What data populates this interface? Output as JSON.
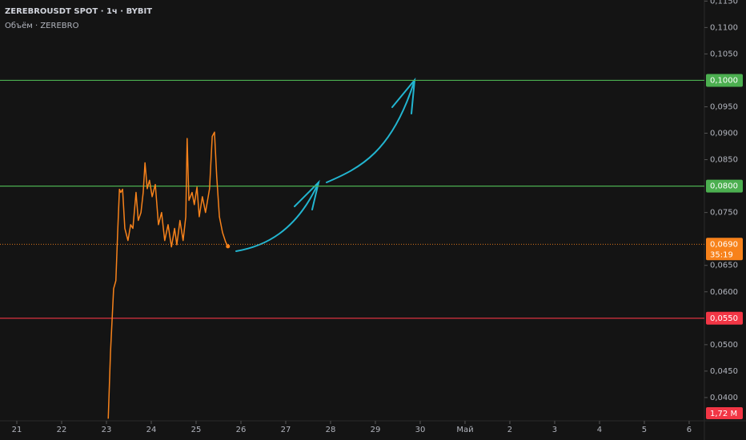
{
  "chart_data": {
    "type": "line",
    "title": "ZEREBROUSDT SPOT · 1ч · BYBIT",
    "subtitle": "Объём · ZEREBRO",
    "background": "#141414",
    "grid": false,
    "x": [
      23.04,
      23.09,
      23.16,
      23.21,
      23.25,
      23.29,
      23.32,
      23.36,
      23.41,
      23.48,
      23.54,
      23.59,
      23.66,
      23.71,
      23.77,
      23.82,
      23.86,
      23.91,
      23.96,
      24.02,
      24.09,
      24.16,
      24.23,
      24.3,
      24.375,
      24.45,
      24.52,
      24.57,
      24.64,
      24.71,
      24.77,
      24.8,
      24.84,
      24.91,
      24.96,
      25.02,
      25.07,
      25.14,
      25.21,
      25.3,
      25.36,
      25.41,
      25.46,
      25.52,
      25.59,
      25.66,
      25.71
    ],
    "series": [
      {
        "color": "#f7821b",
        "values": [
          0.036,
          0.0485,
          0.0606,
          0.0621,
          0.0712,
          0.0794,
          0.0788,
          0.0794,
          0.072,
          0.0697,
          0.0727,
          0.072,
          0.0788,
          0.0735,
          0.075,
          0.0788,
          0.0844,
          0.0795,
          0.0811,
          0.078,
          0.0803,
          0.0727,
          0.075,
          0.0697,
          0.0727,
          0.0685,
          0.072,
          0.0689,
          0.0735,
          0.0697,
          0.0742,
          0.089,
          0.0773,
          0.0788,
          0.0765,
          0.0798,
          0.0742,
          0.078,
          0.075,
          0.0795,
          0.0894,
          0.0902,
          0.0818,
          0.0742,
          0.0712,
          0.0694,
          0.0686
        ]
      }
    ],
    "xlim": [
      20.625,
      36.34
    ],
    "xticks": [
      21,
      22,
      23,
      24,
      25,
      26,
      27,
      28,
      29,
      30,
      {
        "value": 31,
        "label": "Май"
      },
      {
        "value": 32,
        "label": "2"
      },
      {
        "value": 33,
        "label": "3"
      },
      {
        "value": 34,
        "label": "4"
      },
      {
        "value": 35,
        "label": "5"
      },
      {
        "value": 36,
        "label": "6"
      }
    ],
    "ylim": [
      0.0356,
      0.1152
    ],
    "yticks": [
      {
        "value": 0.04,
        "label": "0,0400"
      },
      {
        "value": 0.045,
        "label": "0,0450"
      },
      {
        "value": 0.05,
        "label": "0,0500"
      },
      {
        "value": 0.06,
        "label": "0,0600"
      },
      {
        "value": 0.065,
        "label": "0,0650"
      },
      {
        "value": 0.075,
        "label": "0,0750"
      },
      {
        "value": 0.085,
        "label": "0,0850"
      },
      {
        "value": 0.09,
        "label": "0,0900"
      },
      {
        "value": 0.095,
        "label": "0,0950"
      },
      {
        "value": 0.105,
        "label": "0,1050"
      },
      {
        "value": 0.11,
        "label": "0,1100"
      },
      {
        "value": 0.115,
        "label": "0,1150"
      }
    ],
    "levels": [
      {
        "value": 0.1,
        "label": "0,1000",
        "color": "#4caf50"
      },
      {
        "value": 0.08,
        "label": "0,0800",
        "color": "#4caf50"
      },
      {
        "value": 0.055,
        "label": "0,0550",
        "color": "#f23645"
      }
    ],
    "last_price": {
      "value": 0.069,
      "label": "0,0690",
      "countdown": "35:19",
      "color": "#f7821b"
    },
    "volume_label": "1,72 M"
  }
}
